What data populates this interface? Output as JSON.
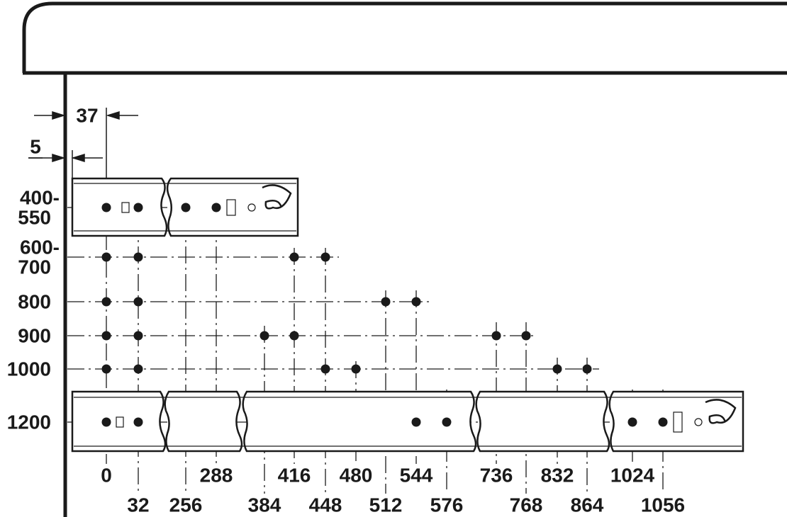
{
  "dimensions": [
    "37",
    "5"
  ],
  "rows": [
    [
      "400-",
      "550"
    ],
    [
      "600-",
      "700"
    ],
    [
      "800"
    ],
    [
      "900"
    ],
    [
      "1000"
    ],
    [
      "1200"
    ]
  ],
  "columns": [
    "0",
    "32",
    "256",
    "288",
    "384",
    "416",
    "448",
    "480",
    "512",
    "544",
    "576",
    "736",
    "768",
    "832",
    "864",
    "1024",
    "1056"
  ]
}
